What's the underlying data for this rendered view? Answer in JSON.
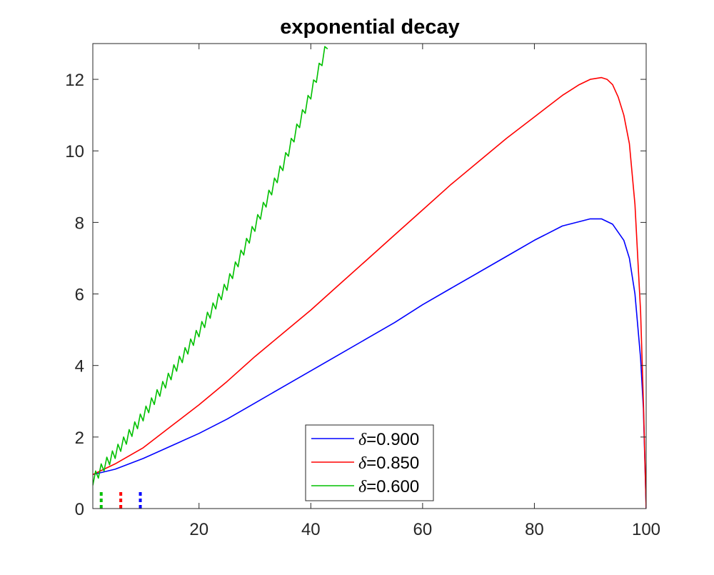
{
  "colors": {
    "background": "#ffffff",
    "axis": "#262626",
    "blue": "#0000ff",
    "red": "#ff0000",
    "green": "#00c000"
  },
  "chart_data": {
    "type": "line",
    "title": "exponential decay",
    "xlabel": "",
    "ylabel": "",
    "xlim": [
      1,
      100
    ],
    "ylim": [
      0,
      13
    ],
    "grid": false,
    "box": true,
    "legend_position": "bottom-center",
    "xticks": [
      20,
      40,
      60,
      80,
      100
    ],
    "yticks": [
      0,
      2,
      4,
      6,
      8,
      10,
      12
    ],
    "series": [
      {
        "name": "δ=0.900",
        "delta_symbol": "δ",
        "delta_value": "=0.900",
        "color": "#0000ff",
        "sawtooth": false,
        "x": [
          1,
          5,
          10,
          15,
          20,
          25,
          30,
          35,
          40,
          45,
          50,
          55,
          60,
          65,
          70,
          75,
          80,
          85,
          88,
          90,
          92,
          94,
          96,
          97,
          98,
          99,
          99.5,
          100
        ],
        "y": [
          0.95,
          1.1,
          1.4,
          1.75,
          2.1,
          2.5,
          2.95,
          3.4,
          3.85,
          4.3,
          4.75,
          5.2,
          5.7,
          6.15,
          6.6,
          7.05,
          7.5,
          7.9,
          8.02,
          8.1,
          8.1,
          7.95,
          7.5,
          7.0,
          6.0,
          4.2,
          2.8,
          0
        ]
      },
      {
        "name": "δ=0.850",
        "delta_symbol": "δ",
        "delta_value": "=0.850",
        "color": "#ff0000",
        "sawtooth": false,
        "x": [
          1,
          5,
          10,
          15,
          20,
          25,
          30,
          35,
          40,
          45,
          50,
          55,
          60,
          65,
          70,
          75,
          80,
          85,
          88,
          90,
          92,
          93,
          94,
          95,
          96,
          97,
          98,
          99,
          99.5,
          100
        ],
        "y": [
          0.95,
          1.25,
          1.7,
          2.3,
          2.9,
          3.55,
          4.25,
          4.9,
          5.55,
          6.25,
          6.95,
          7.65,
          8.35,
          9.05,
          9.7,
          10.35,
          10.95,
          11.55,
          11.85,
          12.0,
          12.05,
          12.0,
          11.85,
          11.5,
          11.0,
          10.2,
          8.5,
          5.5,
          3.0,
          0
        ]
      },
      {
        "name": "δ=0.600",
        "delta_symbol": "δ",
        "delta_value": "=0.600",
        "color": "#00c000",
        "sawtooth": true,
        "x": [
          1,
          3,
          5,
          7,
          10,
          15,
          20,
          25,
          30,
          35,
          40,
          43
        ],
        "y": [
          0.8,
          1.2,
          1.55,
          1.95,
          2.6,
          3.75,
          4.95,
          6.25,
          7.9,
          9.6,
          11.6,
          13.0
        ]
      }
    ],
    "markers": [
      {
        "x": 2.5,
        "color": "#00c000",
        "y_from": 0,
        "y_to": 0.5
      },
      {
        "x": 6,
        "color": "#ff0000",
        "y_from": 0,
        "y_to": 0.5
      },
      {
        "x": 9.5,
        "color": "#0000ff",
        "y_from": 0,
        "y_to": 0.5
      }
    ]
  }
}
